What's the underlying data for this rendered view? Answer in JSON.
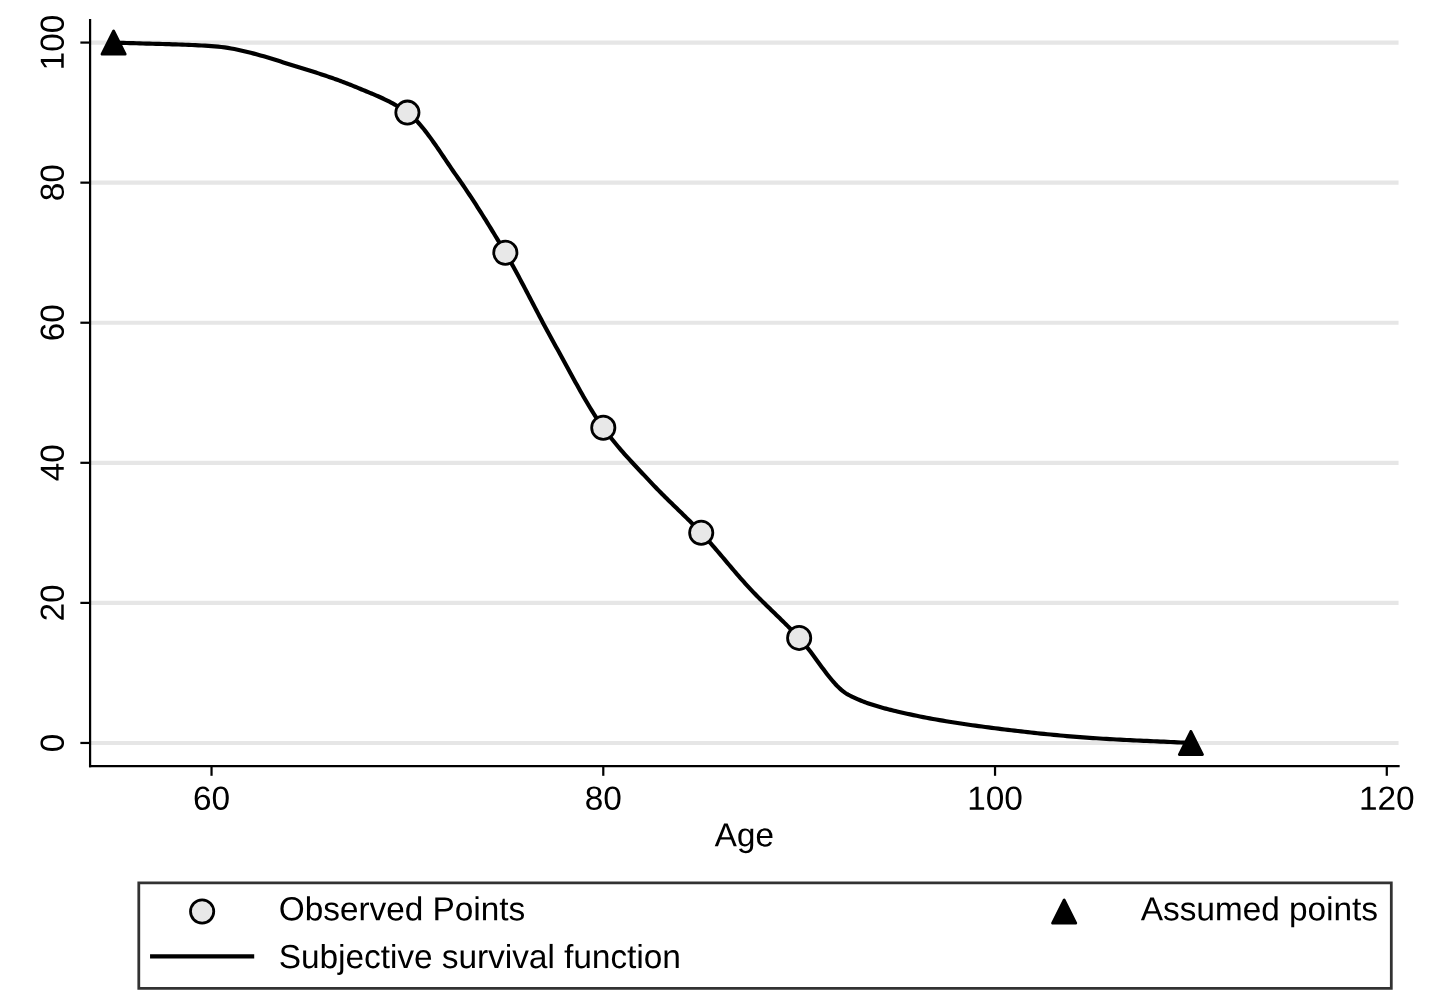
{
  "chart_data": {
    "type": "line",
    "xlabel": "Age",
    "series": [
      {
        "name": "Observed Points",
        "type": "scatter",
        "marker": "circle",
        "color": "#e8e8e8",
        "x": [
          70,
          75,
          80,
          85,
          90
        ],
        "values": [
          90,
          70,
          45,
          30,
          15
        ]
      },
      {
        "name": "Subjective survival function",
        "marker": "none",
        "line_style": "solid",
        "color": "#000000",
        "x": [
          55,
          60,
          65,
          67.5,
          70,
          72.5,
          75,
          77.5,
          80,
          82.5,
          85,
          87.5,
          90,
          92.5,
          95,
          100,
          105,
          110
        ],
        "values": [
          100,
          99.5,
          96,
          93.5,
          90,
          81,
          70,
          57,
          45,
          37,
          30,
          22,
          15,
          6.9,
          4.5,
          2.1,
          0.7,
          0
        ]
      },
      {
        "name": "Assumed points",
        "type": "scatter",
        "marker": "triangle",
        "color": "#000000",
        "x": [
          55,
          110
        ],
        "values": [
          100,
          0
        ]
      }
    ],
    "xlim": [
      53.8,
      120.6
    ],
    "ylim": [
      -3.3,
      103.2
    ],
    "xticks": [
      60,
      80,
      100,
      120
    ],
    "yticks": [
      0,
      20,
      40,
      60,
      80,
      100
    ],
    "grid": "y",
    "legend": "bottom"
  }
}
